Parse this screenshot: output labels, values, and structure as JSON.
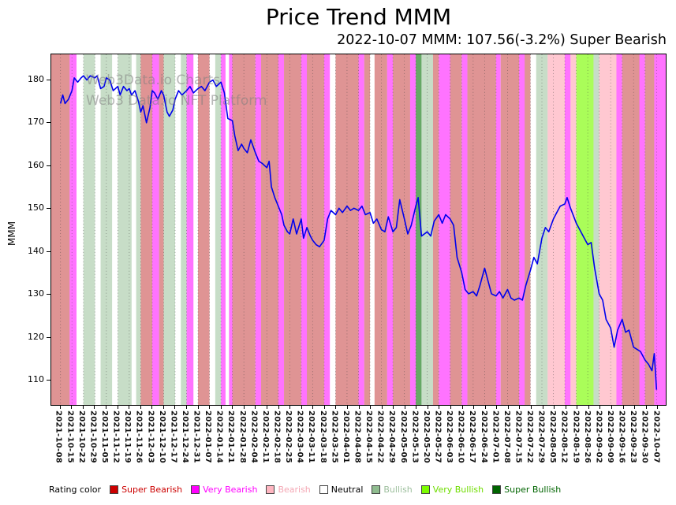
{
  "title": "Price Trend MMM",
  "subtitle": "2022-10-07 MMM: 107.56(-3.2%) Super Bearish",
  "watermark": {
    "line1": "Web3Data.io Charts",
    "line2": "Web3 Data.io NFT Platform"
  },
  "legend": {
    "label": "Rating color",
    "items": [
      {
        "name": "Super Bearish",
        "color": "#cc0000",
        "text_color": "#cc0000"
      },
      {
        "name": "Very Bearish",
        "color": "#ff00ff",
        "text_color": "#ff00ff"
      },
      {
        "name": "Bearish",
        "color": "#ffb6c1",
        "text_color": "#f4a7b4"
      },
      {
        "name": "Neutral",
        "color": "#ffffff",
        "text_color": "#000000"
      },
      {
        "name": "Bullish",
        "color": "#8fbc8f",
        "text_color": "#9dbf9d"
      },
      {
        "name": "Very Bullish",
        "color": "#7cfc00",
        "text_color": "#6fdd00"
      },
      {
        "name": "Super Bullish",
        "color": "#006400",
        "text_color": "#006400"
      }
    ]
  },
  "chart_data": {
    "type": "line",
    "title": "Price Trend MMM",
    "xlabel": "",
    "ylabel": "MMM",
    "ylim": [
      104,
      186
    ],
    "yticks": [
      110,
      120,
      130,
      140,
      150,
      160,
      170,
      180
    ],
    "grid": "vertical dotted weekly gridlines",
    "legend_position": "bottom",
    "xticklabels": [
      "2021-10-08",
      "2021-10-15",
      "2021-10-22",
      "2021-10-29",
      "2021-11-05",
      "2021-11-12",
      "2021-11-19",
      "2021-11-26",
      "2021-12-03",
      "2021-12-10",
      "2021-12-17",
      "2021-12-24",
      "2021-12-31",
      "2022-01-07",
      "2022-01-14",
      "2022-01-21",
      "2022-01-28",
      "2022-02-04",
      "2022-02-11",
      "2022-02-18",
      "2022-02-25",
      "2022-03-04",
      "2022-03-11",
      "2022-03-18",
      "2022-03-25",
      "2022-04-01",
      "2022-04-08",
      "2022-04-15",
      "2022-04-22",
      "2022-04-29",
      "2022-05-06",
      "2022-05-13",
      "2022-05-20",
      "2022-05-27",
      "2022-06-03",
      "2022-06-10",
      "2022-06-17",
      "2022-06-24",
      "2022-07-01",
      "2022-07-08",
      "2022-07-15",
      "2022-07-22",
      "2022-07-29",
      "2022-08-05",
      "2022-08-12",
      "2022-08-19",
      "2022-08-26",
      "2022-09-02",
      "2022-09-09",
      "2022-09-16",
      "2022-09-23",
      "2022-09-30",
      "2022-10-07"
    ],
    "latest": {
      "date": "2022-10-07",
      "price": 107.56,
      "change_pct": -3.2,
      "rating": "Super Bearish"
    },
    "series": [
      {
        "name": "MMM price",
        "color": "#0000ee",
        "points": [
          [
            0,
            174.5
          ],
          [
            0.2,
            176.5
          ],
          [
            0.4,
            174.5
          ],
          [
            0.7,
            175.5
          ],
          [
            1,
            177.5
          ],
          [
            1.2,
            180.5
          ],
          [
            1.5,
            179.5
          ],
          [
            1.8,
            180.5
          ],
          [
            2,
            181
          ],
          [
            2.3,
            180
          ],
          [
            2.6,
            181
          ],
          [
            3,
            180.5
          ],
          [
            3.2,
            181
          ],
          [
            3.5,
            178
          ],
          [
            3.8,
            178.5
          ],
          [
            4,
            180.5
          ],
          [
            4.3,
            180
          ],
          [
            4.6,
            177.5
          ],
          [
            5,
            178.5
          ],
          [
            5.2,
            176.5
          ],
          [
            5.5,
            178.5
          ],
          [
            5.8,
            177.5
          ],
          [
            6,
            178
          ],
          [
            6.2,
            176.5
          ],
          [
            6.5,
            177.5
          ],
          [
            6.8,
            175
          ],
          [
            7,
            172.5
          ],
          [
            7.2,
            174
          ],
          [
            7.5,
            170
          ],
          [
            7.8,
            173.5
          ],
          [
            8,
            177.5
          ],
          [
            8.2,
            177
          ],
          [
            8.5,
            175.5
          ],
          [
            8.8,
            177.5
          ],
          [
            9,
            176.5
          ],
          [
            9.3,
            172.5
          ],
          [
            9.5,
            171.5
          ],
          [
            9.8,
            173
          ],
          [
            10,
            175.5
          ],
          [
            10.3,
            177.5
          ],
          [
            10.6,
            176.5
          ],
          [
            11,
            177.5
          ],
          [
            11.3,
            178.5
          ],
          [
            11.6,
            177
          ],
          [
            12,
            178
          ],
          [
            12.3,
            178.5
          ],
          [
            12.6,
            177.5
          ],
          [
            13,
            179.5
          ],
          [
            13.3,
            180
          ],
          [
            13.6,
            178.5
          ],
          [
            14,
            179.5
          ],
          [
            14.3,
            177
          ],
          [
            14.6,
            171
          ],
          [
            15,
            170.5
          ],
          [
            15.2,
            167
          ],
          [
            15.5,
            163.5
          ],
          [
            15.8,
            165
          ],
          [
            16,
            164
          ],
          [
            16.3,
            163
          ],
          [
            16.6,
            166
          ],
          [
            17,
            163
          ],
          [
            17.3,
            161
          ],
          [
            17.6,
            160.5
          ],
          [
            18,
            159.5
          ],
          [
            18.2,
            161
          ],
          [
            18.4,
            155
          ],
          [
            18.7,
            152.5
          ],
          [
            19,
            150.5
          ],
          [
            19.3,
            148.5
          ],
          [
            19.5,
            146
          ],
          [
            19.8,
            144.5
          ],
          [
            20,
            144
          ],
          [
            20.3,
            147.5
          ],
          [
            20.6,
            144
          ],
          [
            21,
            147.5
          ],
          [
            21.2,
            143
          ],
          [
            21.5,
            145.5
          ],
          [
            21.8,
            143.5
          ],
          [
            22,
            142.5
          ],
          [
            22.3,
            141.5
          ],
          [
            22.6,
            141
          ],
          [
            23,
            142.5
          ],
          [
            23.3,
            147.5
          ],
          [
            23.6,
            149.5
          ],
          [
            24,
            148.5
          ],
          [
            24.3,
            150
          ],
          [
            24.6,
            149
          ],
          [
            25,
            150.5
          ],
          [
            25.3,
            149.5
          ],
          [
            25.6,
            150
          ],
          [
            26,
            149.5
          ],
          [
            26.3,
            150.5
          ],
          [
            26.6,
            148.5
          ],
          [
            27,
            149
          ],
          [
            27.3,
            146.5
          ],
          [
            27.6,
            147.5
          ],
          [
            28,
            145
          ],
          [
            28.3,
            144.5
          ],
          [
            28.6,
            148
          ],
          [
            29,
            144.5
          ],
          [
            29.3,
            145.5
          ],
          [
            29.6,
            152
          ],
          [
            30,
            147.5
          ],
          [
            30.3,
            144
          ],
          [
            30.6,
            146
          ],
          [
            31,
            150.5
          ],
          [
            31.2,
            152.5
          ],
          [
            31.5,
            143.5
          ],
          [
            32,
            144.5
          ],
          [
            32.3,
            143.5
          ],
          [
            32.6,
            147
          ],
          [
            33,
            148.5
          ],
          [
            33.3,
            146.5
          ],
          [
            33.6,
            148.5
          ],
          [
            34,
            147.5
          ],
          [
            34.3,
            146
          ],
          [
            34.6,
            138.5
          ],
          [
            35,
            135
          ],
          [
            35.3,
            131
          ],
          [
            35.6,
            130
          ],
          [
            36,
            130.5
          ],
          [
            36.3,
            129.5
          ],
          [
            36.6,
            132
          ],
          [
            37,
            136
          ],
          [
            37.3,
            133
          ],
          [
            37.6,
            130
          ],
          [
            38,
            129.5
          ],
          [
            38.3,
            130.5
          ],
          [
            38.6,
            129
          ],
          [
            39,
            131
          ],
          [
            39.3,
            129
          ],
          [
            39.6,
            128.5
          ],
          [
            40,
            129
          ],
          [
            40.3,
            128.5
          ],
          [
            40.6,
            132
          ],
          [
            41,
            135.5
          ],
          [
            41.3,
            138.5
          ],
          [
            41.6,
            137
          ],
          [
            42,
            143
          ],
          [
            42.3,
            145.5
          ],
          [
            42.6,
            144.5
          ],
          [
            43,
            147.5
          ],
          [
            43.3,
            149
          ],
          [
            43.6,
            150.5
          ],
          [
            44,
            151
          ],
          [
            44.2,
            152.5
          ],
          [
            44.5,
            150
          ],
          [
            45,
            146.5
          ],
          [
            45.3,
            145
          ],
          [
            45.6,
            143.5
          ],
          [
            46,
            141.5
          ],
          [
            46.3,
            142
          ],
          [
            46.6,
            136
          ],
          [
            47,
            130
          ],
          [
            47.3,
            128.5
          ],
          [
            47.6,
            124
          ],
          [
            48,
            122
          ],
          [
            48.3,
            117.5
          ],
          [
            48.6,
            121.5
          ],
          [
            49,
            124
          ],
          [
            49.3,
            121
          ],
          [
            49.6,
            121.5
          ],
          [
            50,
            117.5
          ],
          [
            50.3,
            117
          ],
          [
            50.6,
            116.5
          ],
          [
            51,
            114.5
          ],
          [
            51.3,
            113.5
          ],
          [
            51.6,
            112
          ],
          [
            51.8,
            116
          ],
          [
            52,
            107.56
          ]
        ]
      }
    ],
    "band_colors": {
      "super_bearish": "rgba(200,70,70,0.58)",
      "very_bearish": "rgba(255,0,255,0.55)",
      "bearish": "rgba(255,182,193,0.75)",
      "neutral": "rgba(255,255,255,0)",
      "bullish": "rgba(143,188,143,0.5)",
      "very_bullish": "rgba(124,252,0,0.65)",
      "super_bullish": "rgba(0,110,0,0.6)"
    },
    "bands": [
      [
        0,
        0.8,
        "super_bearish"
      ],
      [
        0.8,
        1.4,
        "very_bearish"
      ],
      [
        1.4,
        2,
        "neutral"
      ],
      [
        2,
        3,
        "bullish"
      ],
      [
        3,
        3.5,
        "neutral"
      ],
      [
        3.5,
        4.5,
        "bullish"
      ],
      [
        4.5,
        5,
        "neutral"
      ],
      [
        5,
        6.2,
        "bullish"
      ],
      [
        6.2,
        6.6,
        "neutral"
      ],
      [
        6.6,
        7,
        "bullish"
      ],
      [
        7,
        8,
        "super_bearish"
      ],
      [
        8,
        8.6,
        "very_bearish"
      ],
      [
        8.6,
        9,
        "super_bearish"
      ],
      [
        9,
        10,
        "bullish"
      ],
      [
        10,
        10.5,
        "neutral"
      ],
      [
        10.5,
        11,
        "bullish"
      ],
      [
        11,
        11.6,
        "very_bearish"
      ],
      [
        11.6,
        12,
        "neutral"
      ],
      [
        12,
        13,
        "super_bearish"
      ],
      [
        13,
        13.5,
        "neutral"
      ],
      [
        13.5,
        14,
        "bullish"
      ],
      [
        14,
        14.4,
        "very_bearish"
      ],
      [
        14.4,
        14.7,
        "neutral"
      ],
      [
        14.7,
        15,
        "very_bearish"
      ],
      [
        15,
        17,
        "super_bearish"
      ],
      [
        17,
        17.5,
        "very_bearish"
      ],
      [
        17.5,
        19,
        "super_bearish"
      ],
      [
        19,
        19.5,
        "very_bearish"
      ],
      [
        19.5,
        21,
        "super_bearish"
      ],
      [
        21,
        21.5,
        "very_bearish"
      ],
      [
        21.5,
        23,
        "super_bearish"
      ],
      [
        23,
        23.5,
        "very_bearish"
      ],
      [
        23.5,
        24,
        "neutral"
      ],
      [
        24,
        26,
        "super_bearish"
      ],
      [
        26,
        26.5,
        "very_bearish"
      ],
      [
        26.5,
        27,
        "super_bearish"
      ],
      [
        27,
        27.4,
        "neutral"
      ],
      [
        27.4,
        28.5,
        "super_bearish"
      ],
      [
        28.5,
        29,
        "very_bearish"
      ],
      [
        29,
        30.5,
        "super_bearish"
      ],
      [
        30.5,
        31,
        "very_bearish"
      ],
      [
        31,
        31.5,
        "super_bullish"
      ],
      [
        31.5,
        32.5,
        "bullish"
      ],
      [
        32.5,
        33,
        "super_bearish"
      ],
      [
        33,
        34,
        "very_bearish"
      ],
      [
        34,
        35,
        "super_bearish"
      ],
      [
        35,
        35.5,
        "very_bearish"
      ],
      [
        35.5,
        38,
        "super_bearish"
      ],
      [
        38,
        38.4,
        "very_bearish"
      ],
      [
        38.4,
        40,
        "super_bearish"
      ],
      [
        40,
        40.5,
        "very_bearish"
      ],
      [
        40.5,
        41,
        "super_bearish"
      ],
      [
        41,
        41.5,
        "neutral"
      ],
      [
        41.5,
        42.5,
        "bullish"
      ],
      [
        42.5,
        44,
        "bearish"
      ],
      [
        44,
        44.5,
        "very_bearish"
      ],
      [
        44.5,
        45,
        "bearish"
      ],
      [
        45,
        46.5,
        "very_bullish"
      ],
      [
        46.5,
        47,
        "bullish"
      ],
      [
        47,
        48.5,
        "bearish"
      ],
      [
        48.5,
        49,
        "very_bearish"
      ],
      [
        49,
        50.5,
        "super_bearish"
      ],
      [
        50.5,
        51,
        "very_bearish"
      ],
      [
        51,
        51.8,
        "super_bearish"
      ],
      [
        51.8,
        52,
        "very_bearish"
      ]
    ]
  }
}
